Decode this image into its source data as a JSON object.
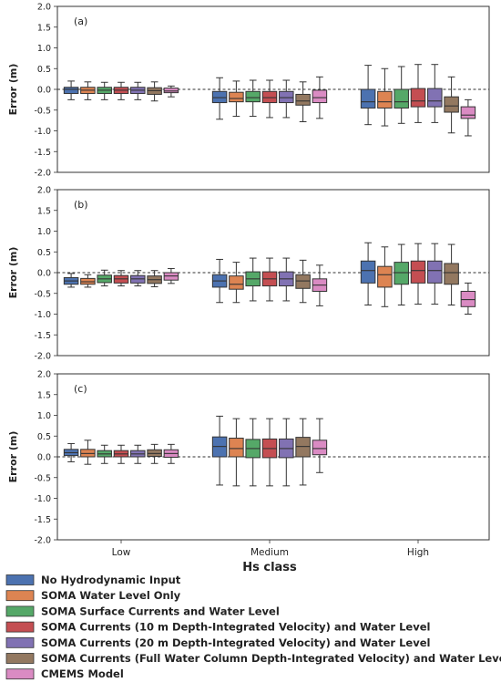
{
  "chart_data": {
    "type": "box",
    "xlabel": "Hs class",
    "ylabel": "Error (m)",
    "ylim": [
      -2.0,
      2.0
    ],
    "yticks": [
      -2.0,
      -1.5,
      -1.0,
      -0.5,
      0.0,
      0.5,
      1.0,
      1.5,
      2.0
    ],
    "categories": [
      "Low",
      "Medium",
      "High"
    ],
    "reference_line": 0.0,
    "series": [
      {
        "name": "No Hydrodynamic Input",
        "color": "#4c72b0"
      },
      {
        "name": "SOMA Water Level Only",
        "color": "#dd8452"
      },
      {
        "name": "SOMA Surface Currents and Water Level",
        "color": "#55a868"
      },
      {
        "name": "SOMA Currents (10 m Depth-Integrated Velocity) and Water Level",
        "color": "#c44e52"
      },
      {
        "name": "SOMA Currents (20 m Depth-Integrated Velocity) and Water Level",
        "color": "#8172b3"
      },
      {
        "name": "SOMA Currents (Full Water Column Depth-Integrated Velocity) and Water Level",
        "color": "#937860"
      },
      {
        "name": "CMEMS Model",
        "color": "#da8bc3"
      }
    ],
    "panels": [
      {
        "label": "(a)",
        "groups": [
          [
            [
              -0.25,
              -0.1,
              0.0,
              0.05,
              0.2
            ],
            [
              -0.25,
              -0.1,
              -0.02,
              0.05,
              0.18
            ],
            [
              -0.25,
              -0.1,
              -0.02,
              0.05,
              0.17
            ],
            [
              -0.25,
              -0.1,
              -0.02,
              0.05,
              0.17
            ],
            [
              -0.25,
              -0.1,
              -0.02,
              0.05,
              0.17
            ],
            [
              -0.28,
              -0.12,
              -0.03,
              0.04,
              0.18
            ],
            [
              -0.18,
              -0.08,
              -0.04,
              0.03,
              0.08
            ]
          ],
          [
            [
              -0.72,
              -0.32,
              -0.2,
              -0.05,
              0.28
            ],
            [
              -0.65,
              -0.3,
              -0.22,
              -0.07,
              0.2
            ],
            [
              -0.65,
              -0.3,
              -0.2,
              -0.05,
              0.22
            ],
            [
              -0.68,
              -0.32,
              -0.2,
              -0.05,
              0.22
            ],
            [
              -0.68,
              -0.32,
              -0.2,
              -0.05,
              0.22
            ],
            [
              -0.78,
              -0.38,
              -0.28,
              -0.12,
              0.18
            ],
            [
              -0.7,
              -0.32,
              -0.2,
              -0.02,
              0.3
            ]
          ],
          [
            [
              -0.85,
              -0.45,
              -0.3,
              0.0,
              0.58
            ],
            [
              -0.88,
              -0.45,
              -0.3,
              -0.05,
              0.5
            ],
            [
              -0.82,
              -0.45,
              -0.3,
              0.0,
              0.55
            ],
            [
              -0.8,
              -0.42,
              -0.28,
              0.02,
              0.6
            ],
            [
              -0.8,
              -0.42,
              -0.28,
              0.02,
              0.6
            ],
            [
              -1.05,
              -0.55,
              -0.4,
              -0.18,
              0.3
            ],
            [
              -1.12,
              -0.7,
              -0.62,
              -0.42,
              -0.25
            ]
          ]
        ]
      },
      {
        "label": "(b)",
        "groups": [
          [
            [
              -0.35,
              -0.28,
              -0.2,
              -0.12,
              -0.02
            ],
            [
              -0.35,
              -0.28,
              -0.22,
              -0.14,
              -0.05
            ],
            [
              -0.32,
              -0.24,
              -0.15,
              -0.06,
              0.06
            ],
            [
              -0.32,
              -0.25,
              -0.15,
              -0.07,
              0.05
            ],
            [
              -0.32,
              -0.25,
              -0.15,
              -0.07,
              0.05
            ],
            [
              -0.34,
              -0.26,
              -0.17,
              -0.08,
              0.05
            ],
            [
              -0.26,
              -0.18,
              -0.08,
              0.0,
              0.1
            ]
          ],
          [
            [
              -0.72,
              -0.35,
              -0.2,
              -0.05,
              0.32
            ],
            [
              -0.72,
              -0.4,
              -0.28,
              -0.08,
              0.25
            ],
            [
              -0.68,
              -0.32,
              -0.15,
              0.02,
              0.35
            ],
            [
              -0.68,
              -0.32,
              -0.15,
              0.02,
              0.35
            ],
            [
              -0.68,
              -0.32,
              -0.15,
              0.02,
              0.35
            ],
            [
              -0.72,
              -0.38,
              -0.2,
              -0.05,
              0.3
            ],
            [
              -0.8,
              -0.45,
              -0.3,
              -0.15,
              0.18
            ]
          ],
          [
            [
              -0.78,
              -0.25,
              0.05,
              0.28,
              0.72
            ],
            [
              -0.82,
              -0.35,
              -0.05,
              0.15,
              0.62
            ],
            [
              -0.78,
              -0.28,
              0.0,
              0.25,
              0.68
            ],
            [
              -0.76,
              -0.25,
              0.05,
              0.28,
              0.7
            ],
            [
              -0.76,
              -0.25,
              0.05,
              0.28,
              0.7
            ],
            [
              -0.78,
              -0.28,
              0.0,
              0.22,
              0.68
            ],
            [
              -1.0,
              -0.82,
              -0.65,
              -0.45,
              -0.25
            ]
          ]
        ]
      },
      {
        "label": "(c)",
        "groups": [
          [
            [
              -0.12,
              0.03,
              0.1,
              0.18,
              0.32
            ],
            [
              -0.18,
              0.0,
              0.08,
              0.18,
              0.4
            ],
            [
              -0.16,
              0.0,
              0.07,
              0.15,
              0.28
            ],
            [
              -0.16,
              0.0,
              0.07,
              0.15,
              0.28
            ],
            [
              -0.16,
              0.0,
              0.07,
              0.15,
              0.28
            ],
            [
              -0.16,
              0.01,
              0.08,
              0.17,
              0.3
            ],
            [
              -0.16,
              -0.01,
              0.08,
              0.17,
              0.3
            ]
          ],
          [
            [
              -0.68,
              0.0,
              0.25,
              0.48,
              0.98
            ],
            [
              -0.7,
              0.0,
              0.2,
              0.45,
              0.92
            ],
            [
              -0.7,
              -0.02,
              0.2,
              0.42,
              0.92
            ],
            [
              -0.7,
              -0.02,
              0.2,
              0.43,
              0.92
            ],
            [
              -0.7,
              -0.02,
              0.2,
              0.43,
              0.92
            ],
            [
              -0.68,
              0.0,
              0.25,
              0.47,
              0.92
            ],
            [
              -0.38,
              0.05,
              0.2,
              0.4,
              0.92
            ]
          ],
          []
        ]
      }
    ]
  }
}
